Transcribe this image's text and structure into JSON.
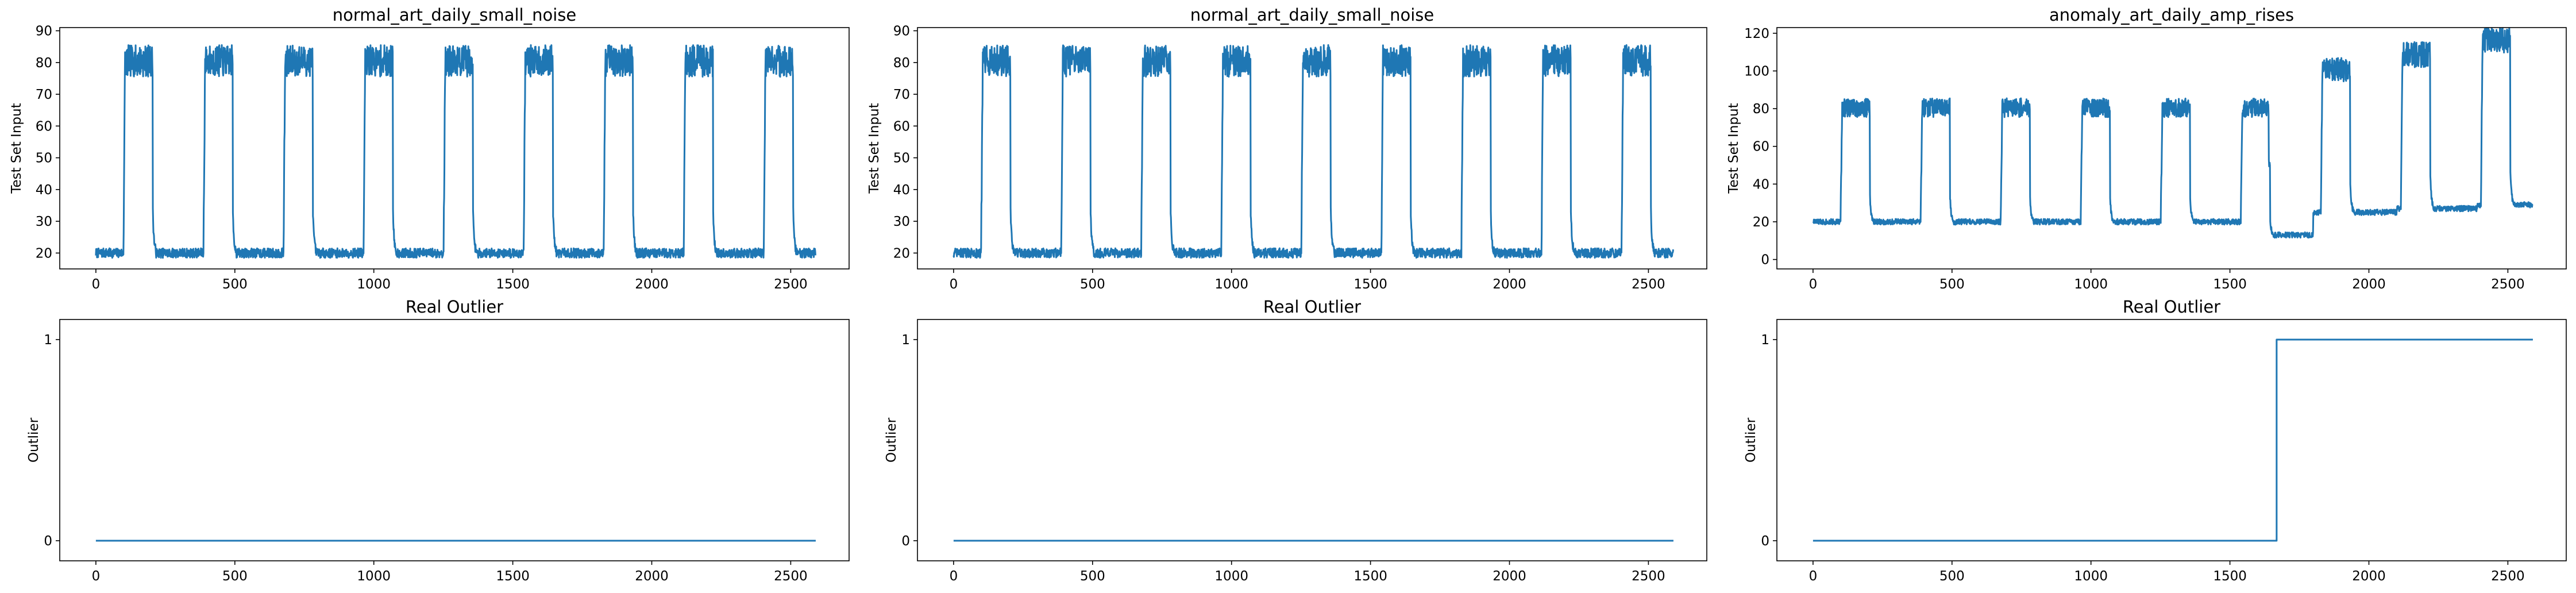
{
  "chart_data": [
    {
      "type": "line",
      "title": "normal_art_daily_small_noise",
      "ylabel": "Test Set Input",
      "xlim": [
        -130,
        2710
      ],
      "ylim": [
        15,
        91
      ],
      "xticks": [
        0,
        500,
        1000,
        1500,
        2000,
        2500
      ],
      "yticks": [
        20,
        30,
        40,
        50,
        60,
        70,
        80,
        90
      ],
      "color": "#1f77b4",
      "series": [
        {
          "pattern": "periodic_plateau",
          "length": 2590,
          "period": 288,
          "rise_start": 100,
          "high_end": 205,
          "low_level": 20,
          "high_level": 80,
          "low_noise": 1.5,
          "high_noise": 5,
          "scale_schedule": [
            {
              "from": 0,
              "scale": 1
            }
          ]
        }
      ]
    },
    {
      "type": "line",
      "title": "normal_art_daily_small_noise",
      "ylabel": "Test Set Input",
      "xlim": [
        -130,
        2710
      ],
      "ylim": [
        15,
        91
      ],
      "xticks": [
        0,
        500,
        1000,
        1500,
        2000,
        2500
      ],
      "yticks": [
        20,
        30,
        40,
        50,
        60,
        70,
        80,
        90
      ],
      "color": "#1f77b4",
      "series": [
        {
          "pattern": "periodic_plateau",
          "length": 2590,
          "period": 288,
          "rise_start": 100,
          "high_end": 205,
          "low_level": 20,
          "high_level": 80,
          "low_noise": 1.5,
          "high_noise": 5,
          "scale_schedule": [
            {
              "from": 0,
              "scale": 1
            }
          ]
        }
      ]
    },
    {
      "type": "line",
      "title": "anomaly_art_daily_amp_rises",
      "ylabel": "Test Set Input",
      "xlim": [
        -130,
        2710
      ],
      "ylim": [
        -5,
        123
      ],
      "xticks": [
        0,
        500,
        1000,
        1500,
        2000,
        2500
      ],
      "yticks": [
        0,
        20,
        40,
        60,
        80,
        100,
        120
      ],
      "color": "#1f77b4",
      "series": [
        {
          "pattern": "periodic_plateau",
          "length": 2590,
          "period": 288,
          "rise_start": 100,
          "high_end": 205,
          "low_level": 20,
          "high_level": 80,
          "low_noise": 1.5,
          "high_noise": 5,
          "scale_schedule": [
            {
              "from": 0,
              "scale": 1
            },
            {
              "from": 1640,
              "scale": 0.65
            },
            {
              "from": 1800,
              "scale": 1.25
            },
            {
              "from": 2100,
              "scale": 1.35
            },
            {
              "from": 2390,
              "scale": 1.45
            }
          ]
        }
      ]
    },
    {
      "type": "line",
      "title": "Real Outlier",
      "ylabel": "Outlier",
      "xlim": [
        -130,
        2710
      ],
      "ylim": [
        -0.1,
        1.1
      ],
      "xticks": [
        0,
        500,
        1000,
        1500,
        2000,
        2500
      ],
      "yticks": [
        0,
        1
      ],
      "color": "#1f77b4",
      "series": [
        {
          "pattern": "step",
          "x": [
            0,
            2590
          ],
          "y": [
            0,
            0
          ]
        }
      ]
    },
    {
      "type": "line",
      "title": "Real Outlier",
      "ylabel": "Outlier",
      "xlim": [
        -130,
        2710
      ],
      "ylim": [
        -0.1,
        1.1
      ],
      "xticks": [
        0,
        500,
        1000,
        1500,
        2000,
        2500
      ],
      "yticks": [
        0,
        1
      ],
      "color": "#1f77b4",
      "series": [
        {
          "pattern": "step",
          "x": [
            0,
            2590
          ],
          "y": [
            0,
            0
          ]
        }
      ]
    },
    {
      "type": "line",
      "title": "Real Outlier",
      "ylabel": "Outlier",
      "xlim": [
        -130,
        2710
      ],
      "ylim": [
        -0.1,
        1.1
      ],
      "xticks": [
        0,
        500,
        1000,
        1500,
        2000,
        2500
      ],
      "yticks": [
        0,
        1
      ],
      "color": "#1f77b4",
      "series": [
        {
          "pattern": "step",
          "x": [
            0,
            1668,
            1668,
            2590
          ],
          "y": [
            0,
            0,
            1,
            1
          ]
        }
      ]
    }
  ]
}
